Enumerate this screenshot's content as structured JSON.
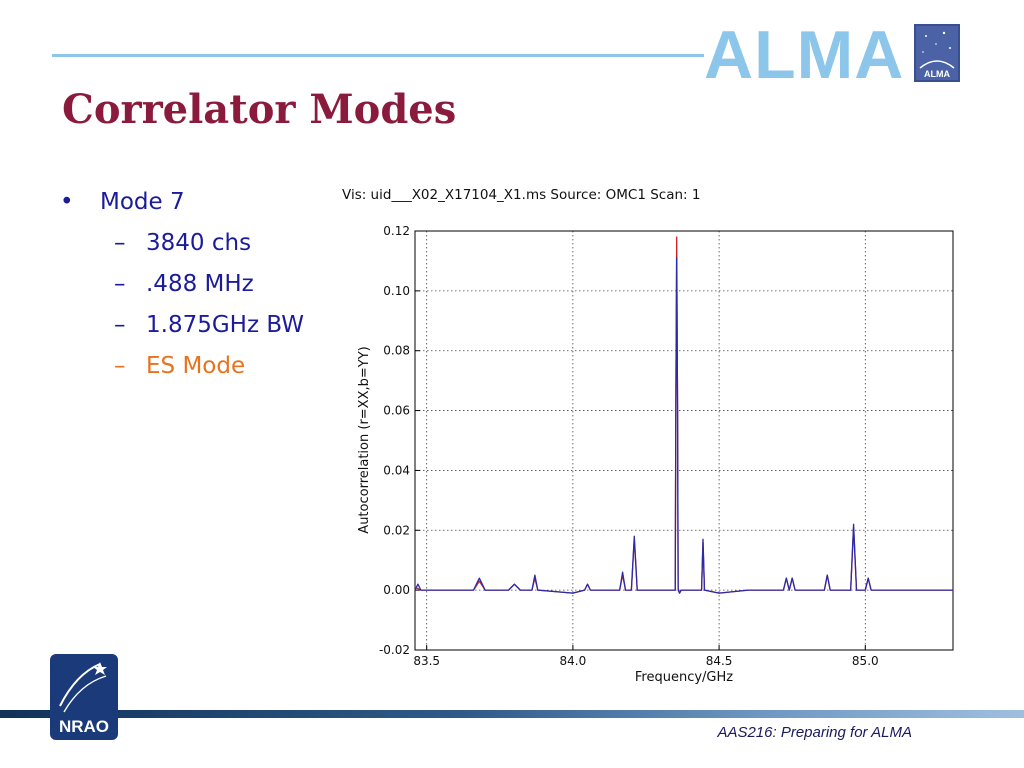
{
  "header": {
    "brand": "ALMA",
    "logo_text": "ALMA",
    "title": "Correlator Modes"
  },
  "bullets": [
    {
      "level": 1,
      "marker": "•",
      "text": "Mode 7",
      "color": "#1c1c9a"
    },
    {
      "level": 2,
      "marker": "–",
      "text": "3840 chs",
      "color": "#1c1c9a"
    },
    {
      "level": 2,
      "marker": "–",
      "text": ".488 MHz",
      "color": "#1c1c9a"
    },
    {
      "level": 2,
      "marker": "–",
      "text": "1.875GHz BW",
      "color": "#1c1c9a"
    },
    {
      "level": 2,
      "marker": "–",
      "text": "ES Mode",
      "color": "#e8731f"
    }
  ],
  "footer": {
    "text": "AAS216: Preparing for ALMA",
    "logo_text": "NRAO"
  },
  "colors": {
    "title": "#8b1b3c",
    "brand": "#8cc6ea",
    "bullet_text": "#1c1c9a",
    "highlight": "#e8731f"
  },
  "chart_data": {
    "type": "line",
    "title": "Vis: uid___X02_X17104_X1.ms Source: OMC1 Scan: 1",
    "xlabel": "Frequency/GHz",
    "ylabel": "Autocorrelation (r=XX,b=YY)",
    "xlim": [
      83.46,
      85.3
    ],
    "ylim": [
      -0.02,
      0.12
    ],
    "x_ticks": [
      83.5,
      84.0,
      84.5,
      85.0
    ],
    "x_tick_labels": [
      "83.5",
      "84.0",
      "84.5",
      "85.0"
    ],
    "y_ticks": [
      -0.02,
      0.0,
      0.02,
      0.04,
      0.06,
      0.08,
      0.1,
      0.12
    ],
    "y_tick_labels": [
      "-0.02",
      "0.00",
      "0.02",
      "0.04",
      "0.06",
      "0.08",
      "0.10",
      "0.12"
    ],
    "grid": true,
    "series": [
      {
        "color": "#cc2222",
        "x": [
          83.46,
          83.48,
          83.5,
          83.6,
          83.66,
          83.68,
          83.7,
          83.78,
          83.8,
          83.82,
          83.86,
          83.87,
          83.88,
          84.0,
          84.04,
          84.05,
          84.06,
          84.16,
          84.17,
          84.18,
          84.2,
          84.21,
          84.22,
          84.3,
          84.35,
          84.352,
          84.355,
          84.358,
          84.36,
          84.365,
          84.37,
          84.4,
          84.44,
          84.445,
          84.45,
          84.5,
          84.6,
          84.72,
          84.73,
          84.74,
          84.75,
          84.76,
          84.77,
          84.86,
          84.87,
          84.88,
          84.92,
          84.95,
          84.96,
          84.97,
          85.0,
          85.01,
          85.02,
          85.1,
          85.2,
          85.3
        ],
        "y": [
          0.001,
          0.0,
          0.0,
          0.0,
          0.0,
          0.003,
          0.0,
          0.0,
          0.002,
          0.0,
          0.0,
          0.004,
          0.0,
          -0.001,
          0.0,
          0.002,
          0.0,
          0.0,
          0.005,
          0.0,
          0.0,
          0.017,
          0.0,
          0.0,
          0.0,
          0.06,
          0.118,
          0.06,
          0.0,
          -0.001,
          0.0,
          0.0,
          0.0,
          0.016,
          0.0,
          -0.001,
          0.0,
          0.0,
          0.004,
          0.0,
          0.004,
          0.0,
          0.0,
          0.0,
          0.005,
          0.0,
          0.0,
          0.0,
          0.021,
          0.0,
          0.0,
          0.004,
          0.0,
          0.0,
          0.0,
          0.0
        ]
      },
      {
        "color": "#2a2aaa",
        "x": [
          83.46,
          83.47,
          83.48,
          83.5,
          83.6,
          83.66,
          83.68,
          83.7,
          83.78,
          83.8,
          83.82,
          83.86,
          83.87,
          83.88,
          84.0,
          84.04,
          84.05,
          84.06,
          84.16,
          84.17,
          84.18,
          84.2,
          84.21,
          84.22,
          84.3,
          84.35,
          84.352,
          84.355,
          84.358,
          84.36,
          84.365,
          84.37,
          84.4,
          84.44,
          84.445,
          84.45,
          84.5,
          84.6,
          84.72,
          84.73,
          84.74,
          84.75,
          84.76,
          84.77,
          84.86,
          84.87,
          84.88,
          84.92,
          84.95,
          84.96,
          84.97,
          85.0,
          85.01,
          85.02,
          85.1,
          85.2,
          85.3
        ],
        "y": [
          0.0,
          0.002,
          0.0,
          0.0,
          0.0,
          0.0,
          0.004,
          0.0,
          0.0,
          0.002,
          0.0,
          0.0,
          0.005,
          0.0,
          -0.001,
          0.0,
          0.002,
          0.0,
          0.0,
          0.006,
          0.0,
          0.0,
          0.018,
          0.0,
          0.0,
          0.0,
          0.06,
          0.111,
          0.06,
          0.0,
          -0.001,
          0.0,
          0.0,
          0.0,
          0.017,
          0.0,
          -0.001,
          0.0,
          0.0,
          0.004,
          0.0,
          0.004,
          0.0,
          0.0,
          0.0,
          0.005,
          0.0,
          0.0,
          0.0,
          0.022,
          0.0,
          0.0,
          0.004,
          0.0,
          0.0,
          0.0,
          0.0
        ]
      }
    ]
  }
}
